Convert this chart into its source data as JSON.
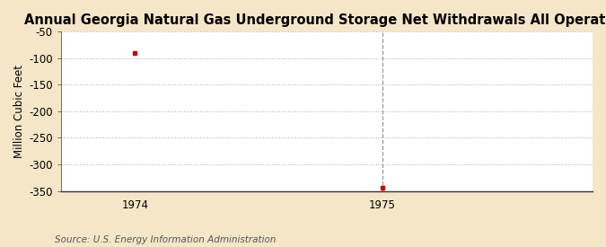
{
  "title": "Annual Georgia Natural Gas Underground Storage Net Withdrawals All Operators",
  "ylabel": "Million Cubic Feet",
  "source": "Source: U.S. Energy Information Administration",
  "x": [
    1974,
    1975
  ],
  "y": [
    -90,
    -344
  ],
  "xlim": [
    1973.7,
    1975.85
  ],
  "ylim": [
    -350,
    -50
  ],
  "yticks": [
    -50,
    -100,
    -150,
    -200,
    -250,
    -300,
    -350
  ],
  "xticks": [
    1974,
    1975
  ],
  "marker_color": "#cc0000",
  "marker": "s",
  "marker_size": 3.5,
  "bg_color": "#f5e6c8",
  "plot_bg_color": "#ffffff",
  "grid_color": "#aaaaaa",
  "grid_linestyle": ":",
  "title_fontsize": 10.5,
  "label_fontsize": 8.5,
  "tick_fontsize": 8.5,
  "source_fontsize": 7.5,
  "vline_color": "#999999",
  "vline_style": "--",
  "vline_x": [
    1975
  ]
}
